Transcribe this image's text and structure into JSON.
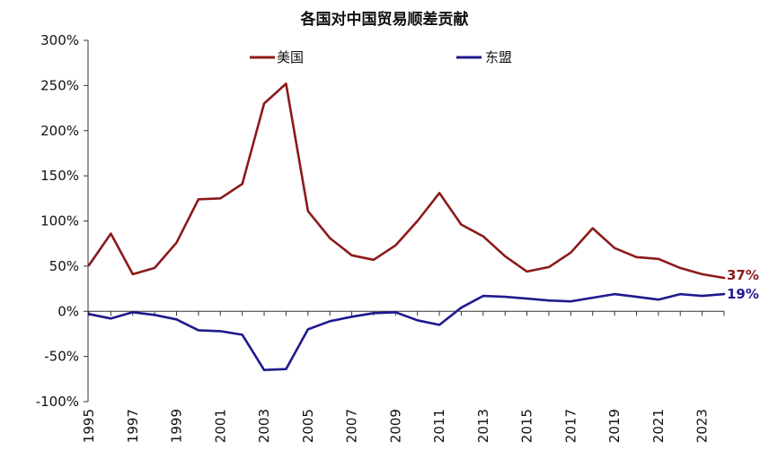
{
  "chart_data": {
    "type": "line",
    "title": "各国对中国贸易顺差贡献",
    "xlabel": "",
    "ylabel": "",
    "x": [
      1995,
      1996,
      1997,
      1998,
      1999,
      2000,
      2001,
      2002,
      2003,
      2004,
      2005,
      2006,
      2007,
      2008,
      2009,
      2010,
      2011,
      2012,
      2013,
      2014,
      2015,
      2016,
      2017,
      2018,
      2019,
      2020,
      2021,
      2022,
      2023,
      2024
    ],
    "ylim": [
      -100,
      300
    ],
    "yticks": [
      -100,
      -50,
      0,
      50,
      100,
      150,
      200,
      250,
      300
    ],
    "ytick_labels": [
      "-100%",
      "-50%",
      "0%",
      "50%",
      "100%",
      "150%",
      "200%",
      "250%",
      "300%"
    ],
    "xtick_labels": [
      "1995",
      "1997",
      "1999",
      "2001",
      "2003",
      "2005",
      "2007",
      "2009",
      "2011",
      "2013",
      "2015",
      "2017",
      "2019",
      "2021",
      "2023"
    ],
    "legend_position": "top",
    "grid": false,
    "series": [
      {
        "name": "美国",
        "color": "#8B1A1A",
        "values": [
          51,
          86,
          41,
          48,
          76,
          124,
          125,
          141,
          230,
          252,
          111,
          81,
          62,
          57,
          73,
          100,
          131,
          96,
          83,
          61,
          44,
          49,
          65,
          92,
          70,
          60,
          58,
          48,
          41,
          37
        ],
        "end_label": "37%"
      },
      {
        "name": "东盟",
        "color": "#1F1A8E",
        "values": [
          -3,
          -8,
          -1,
          -4,
          -9,
          -21,
          -22,
          -26,
          -65,
          -64,
          -20,
          -11,
          -6,
          -2,
          -1,
          -10,
          -15,
          4,
          17,
          16,
          14,
          12,
          11,
          15,
          19,
          16,
          13,
          19,
          17,
          19
        ],
        "end_label": "19%"
      }
    ]
  }
}
